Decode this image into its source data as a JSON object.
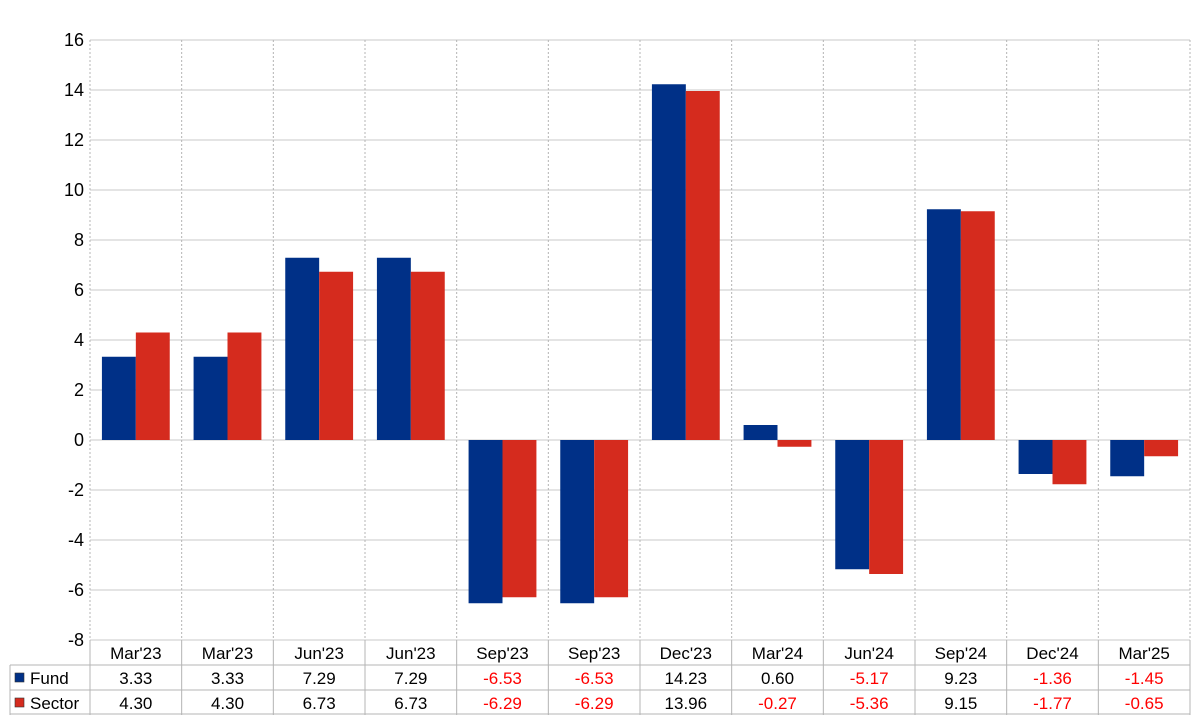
{
  "chart_data": {
    "type": "bar",
    "categories": [
      "Mar'23",
      "Mar'23",
      "Jun'23",
      "Jun'23",
      "Sep'23",
      "Sep'23",
      "Dec'23",
      "Mar'24",
      "Jun'24",
      "Sep'24",
      "Dec'24",
      "Mar'25"
    ],
    "series": [
      {
        "name": "Fund",
        "values": [
          3.33,
          3.33,
          7.29,
          7.29,
          -6.53,
          -6.53,
          14.23,
          0.6,
          -5.17,
          9.23,
          -1.36,
          -1.45
        ],
        "color": "#003087"
      },
      {
        "name": "Sector",
        "values": [
          4.3,
          4.3,
          6.73,
          6.73,
          -6.29,
          -6.29,
          13.96,
          -0.27,
          -5.36,
          9.15,
          -1.77,
          -0.65
        ],
        "color": "#d52b1e"
      }
    ],
    "ylim": [
      -8,
      16
    ],
    "yticks": [
      -8,
      -6,
      -4,
      -2,
      0,
      2,
      4,
      6,
      8,
      10,
      12,
      14,
      16
    ],
    "grid": true,
    "legend": "table-bottom",
    "negative_value_color": "#ff0000"
  }
}
